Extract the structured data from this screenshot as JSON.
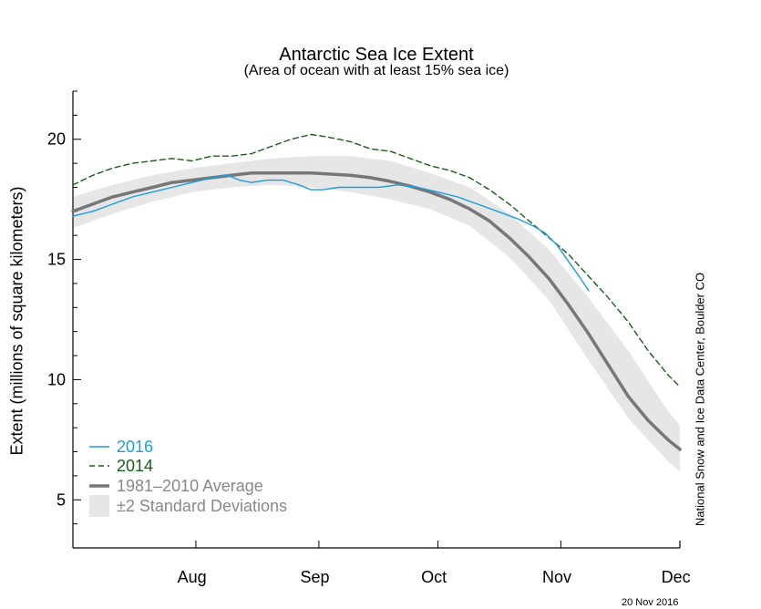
{
  "chart_data": {
    "type": "line",
    "title": "Antarctic Sea Ice Extent",
    "subtitle": "(Area of ocean with at least 15% sea ice)",
    "ylabel": "Extent (millions of square kilometers)",
    "xlabel": "",
    "ylim": [
      3,
      22
    ],
    "yticks": [
      5,
      10,
      15,
      20
    ],
    "x_tick_labels": [
      "Aug",
      "Sep",
      "Oct",
      "Nov",
      "Dec"
    ],
    "x_unit": "day of year",
    "xlim": [
      196,
      349
    ],
    "month_label_positions": [
      226,
      257,
      287,
      318,
      348
    ],
    "month_boundaries": [
      227,
      258,
      288,
      319
    ],
    "grid": false,
    "legend_position": "bottom-left",
    "series": [
      {
        "name": "2016",
        "color": "#1a9ee0",
        "style": "solid",
        "x": [
          196,
          201,
          206,
          211,
          216,
          221,
          226,
          231,
          235,
          238,
          241,
          245,
          249,
          253,
          256,
          259,
          263,
          268,
          273,
          278,
          283,
          288,
          293,
          298,
          303,
          308,
          312,
          315,
          318,
          321,
          324,
          326
        ],
        "y": [
          16.8,
          17.0,
          17.3,
          17.6,
          17.8,
          18.0,
          18.2,
          18.4,
          18.5,
          18.3,
          18.2,
          18.3,
          18.3,
          18.1,
          17.9,
          17.9,
          18.0,
          18.0,
          18.0,
          18.1,
          18.0,
          17.8,
          17.6,
          17.3,
          17.0,
          16.7,
          16.4,
          16.1,
          15.6,
          14.9,
          14.2,
          13.7
        ]
      },
      {
        "name": "2014",
        "color": "#1a5c1a",
        "style": "dashed",
        "x": [
          196,
          201,
          206,
          211,
          216,
          221,
          226,
          231,
          236,
          241,
          246,
          251,
          256,
          260,
          263,
          266,
          271,
          276,
          281,
          286,
          291,
          296,
          301,
          306,
          311,
          316,
          321,
          326,
          331,
          336,
          341,
          346,
          349
        ],
        "y": [
          18.1,
          18.5,
          18.8,
          19.0,
          19.1,
          19.2,
          19.1,
          19.3,
          19.3,
          19.4,
          19.7,
          20.0,
          20.2,
          20.1,
          20.0,
          19.9,
          19.6,
          19.5,
          19.2,
          18.9,
          18.7,
          18.4,
          17.9,
          17.3,
          16.6,
          15.9,
          15.2,
          14.3,
          13.4,
          12.4,
          11.2,
          10.2,
          9.7
        ]
      },
      {
        "name": "1981–2010 Average",
        "color": "#777777",
        "style": "thick",
        "x": [
          196,
          201,
          206,
          211,
          216,
          221,
          226,
          231,
          236,
          241,
          246,
          251,
          256,
          261,
          266,
          271,
          276,
          281,
          286,
          291,
          296,
          301,
          306,
          311,
          316,
          321,
          326,
          331,
          336,
          341,
          346,
          349
        ],
        "y": [
          17.0,
          17.3,
          17.6,
          17.8,
          18.0,
          18.2,
          18.3,
          18.4,
          18.5,
          18.6,
          18.6,
          18.6,
          18.6,
          18.55,
          18.5,
          18.4,
          18.25,
          18.05,
          17.8,
          17.5,
          17.1,
          16.6,
          15.9,
          15.1,
          14.2,
          13.1,
          11.9,
          10.6,
          9.3,
          8.3,
          7.5,
          7.1
        ]
      }
    ],
    "band": {
      "name": "±2 Standard Deviations",
      "color": "#e6e6e6",
      "x": [
        196,
        206,
        216,
        226,
        236,
        246,
        256,
        266,
        276,
        286,
        296,
        306,
        316,
        326,
        336,
        346,
        349
      ],
      "upper": [
        17.6,
        18.1,
        18.5,
        18.8,
        19.0,
        19.2,
        19.3,
        19.3,
        19.1,
        18.6,
        18.0,
        16.9,
        15.4,
        13.4,
        11.2,
        8.7,
        8.1
      ],
      "lower": [
        16.3,
        16.9,
        17.4,
        17.8,
        18.0,
        18.1,
        18.0,
        17.8,
        17.5,
        17.1,
        16.4,
        15.1,
        13.3,
        10.8,
        8.4,
        6.6,
        6.2
      ]
    }
  },
  "footer": {
    "credit": "National Snow and Ice Data Center, Boulder CO",
    "date": "20 Nov 2016"
  }
}
